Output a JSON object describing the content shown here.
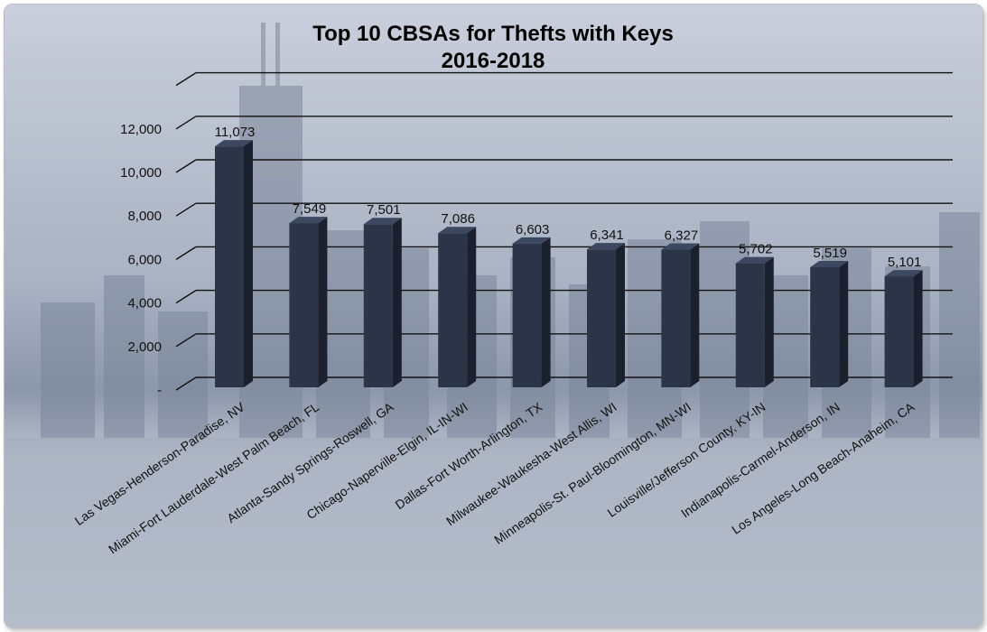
{
  "chart_data": {
    "type": "bar",
    "title": "Top 10 CBSAs for Thefts with Keys",
    "subtitle": "2016-2018",
    "xlabel": "",
    "ylabel": "",
    "ylim": [
      0,
      14000
    ],
    "y_ticks": [
      {
        "value": 0,
        "label": "-"
      },
      {
        "value": 2000,
        "label": "2,000"
      },
      {
        "value": 4000,
        "label": "4,000"
      },
      {
        "value": 6000,
        "label": "6,000"
      },
      {
        "value": 8000,
        "label": "8,000"
      },
      {
        "value": 10000,
        "label": "10,000"
      },
      {
        "value": 12000,
        "label": "12,000"
      }
    ],
    "categories": [
      "Las Vegas-Henderson-Paradise, NV",
      "Miami-Fort Lauderdale-West Palm Beach, FL",
      "Atlanta-Sandy Springs-Roswell, GA",
      "Chicago-Naperville-Elgin, IL-IN-WI",
      "Dallas-Fort Worth-Arlington, TX",
      "Milwaukee-Waukesha-West Allis, WI",
      "Minneapolis-St. Paul-Bloomington, MN-WI",
      "Louisville/Jefferson County, KY-IN",
      "Indianapolis-Carmel-Anderson, IN",
      "Los Angeles-Long Beach-Anaheim, CA"
    ],
    "values": [
      11073,
      7549,
      7501,
      7086,
      6603,
      6341,
      6327,
      5702,
      5519,
      5101
    ],
    "value_labels": [
      "11,073",
      "7,549",
      "7,501",
      "7,086",
      "6,603",
      "6,341",
      "6,327",
      "5,702",
      "5,519",
      "5,101"
    ],
    "grid": true,
    "legend": "none",
    "style": "3d-column",
    "colors": {
      "bar_front": "#2c3447",
      "bar_side": "#1a202d",
      "bar_top": "#3c4760",
      "gridline": "#111111",
      "background_sky": "#aab3c4",
      "background_city": "#6f7a8d"
    }
  }
}
